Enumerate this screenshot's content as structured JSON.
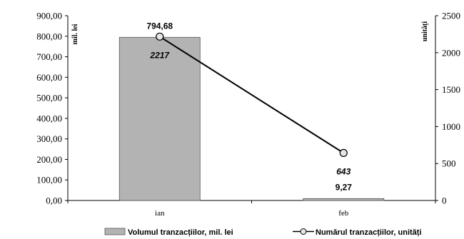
{
  "chart_data": {
    "type": "bar+line",
    "categories": [
      "ian",
      "feb"
    ],
    "left_axis": {
      "label": "mil. lei",
      "min": 0,
      "max": 900,
      "step": 100,
      "tick_labels": [
        "0,00",
        "100,00",
        "200,00",
        "300,00",
        "400,00",
        "500,00",
        "600,00",
        "700,00",
        "800,00",
        "900,00"
      ]
    },
    "right_axis": {
      "label": "unități",
      "min": 0,
      "max": 2500,
      "step": 500,
      "tick_labels": [
        "0",
        "500",
        "1000",
        "1500",
        "2000",
        "2500"
      ]
    },
    "series": [
      {
        "name": "Volumul tranzacțiilor, mil. lei",
        "type": "bar",
        "axis": "left",
        "values": [
          794.68,
          9.27
        ],
        "labels": [
          "794,68",
          "9,27"
        ],
        "color": "#b3b3b3"
      },
      {
        "name": "Numărul tranzacțiilor, unități",
        "type": "line",
        "axis": "right",
        "values": [
          2217,
          643
        ],
        "labels": [
          "2217",
          "643"
        ],
        "color": "#000000"
      }
    ],
    "grid": false,
    "legend": "bottom"
  }
}
